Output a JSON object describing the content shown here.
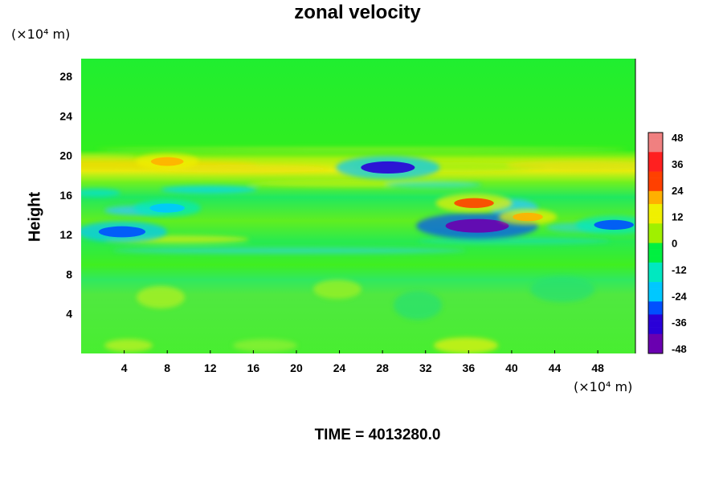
{
  "chart_data": {
    "type": "heatmap",
    "title": "zonal velocity",
    "ylabel": "Height",
    "xlabel": "",
    "x_unit": "(×10⁴ m)",
    "y_unit": "(×10⁴ m)",
    "x_ticks": [
      4,
      8,
      12,
      16,
      20,
      24,
      28,
      32,
      36,
      40,
      44,
      48
    ],
    "y_ticks": [
      4,
      8,
      12,
      16,
      20,
      24,
      28
    ],
    "xlim": [
      0,
      51.5
    ],
    "ylim": [
      0,
      29.8
    ],
    "colorbar": {
      "ticks": [
        48,
        36,
        24,
        12,
        0,
        -12,
        -24,
        -36,
        -48
      ],
      "range": [
        -50,
        50
      ],
      "colors": [
        "#6a00b0",
        "#2a00d8",
        "#0050ff",
        "#00c8ff",
        "#00e8c0",
        "#00f040",
        "#a0f000",
        "#f0f000",
        "#ffb000",
        "#ff4000",
        "#ff2020",
        "#f08080"
      ]
    },
    "features": [
      {
        "x": 28.5,
        "y": 18.8,
        "value": -38
      },
      {
        "x": 36.8,
        "y": 12.9,
        "value": -46
      },
      {
        "x": 3.8,
        "y": 12.3,
        "value": -32
      },
      {
        "x": 36.5,
        "y": 15.2,
        "value": 26
      },
      {
        "x": 41.5,
        "y": 13.8,
        "value": 18
      },
      {
        "x": 8.0,
        "y": 19.4,
        "value": 20
      },
      {
        "x": 49.5,
        "y": 13.0,
        "value": -26
      },
      {
        "x": 8.0,
        "y": 14.7,
        "value": -22
      }
    ]
  },
  "footer": {
    "time_label": "TIME = 4013280.0"
  }
}
